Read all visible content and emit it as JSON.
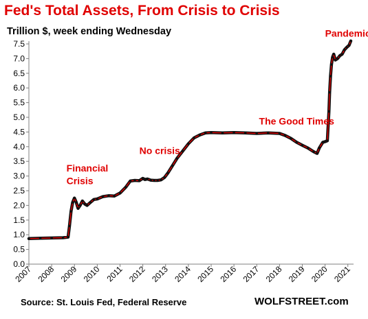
{
  "chart_data": {
    "type": "line",
    "title": "Fed's Total Assets, From Crisis to Crisis",
    "subtitle": "Trillion $, week ending Wednesday",
    "source": "Source: St. Louis Fed, Federal Reserve",
    "brand": "WOLFSTREET.com",
    "xlabel": "",
    "ylabel": "",
    "xlim": [
      2007.0,
      2021.25
    ],
    "ylim": [
      0.0,
      7.5
    ],
    "yticks": [
      "0.0",
      "0.5",
      "1.0",
      "1.5",
      "2.0",
      "2.5",
      "3.0",
      "3.5",
      "4.0",
      "4.5",
      "5.0",
      "5.5",
      "6.0",
      "6.5",
      "7.0",
      "7.5"
    ],
    "xticks": [
      "2007",
      "2008",
      "2009",
      "2010",
      "2011",
      "2012",
      "2013",
      "2014",
      "2015",
      "2016",
      "2017",
      "2018",
      "2019",
      "2020",
      "2021"
    ],
    "grid": false,
    "colors": {
      "line": "#e00000",
      "marker": "#111111",
      "annotation": "#e00000"
    },
    "annotations": [
      {
        "text": "Financial",
        "x": 2008.65,
        "y": 3.15
      },
      {
        "text": "Crisis",
        "x": 2008.65,
        "y": 2.72
      },
      {
        "text": "No crisis",
        "x": 2011.85,
        "y": 3.75
      },
      {
        "text": "The Good Times",
        "x": 2017.1,
        "y": 4.75
      },
      {
        "text": "Pandemic",
        "x": 2020.0,
        "y": 7.75
      }
    ],
    "series": [
      {
        "x": [
          2007.0,
          2007.5,
          2008.0,
          2008.5,
          2008.72,
          2008.78,
          2008.85,
          2008.92,
          2009.0,
          2009.08,
          2009.16,
          2009.25,
          2009.35,
          2009.45,
          2009.55,
          2009.7,
          2009.85,
          2010.0,
          2010.25,
          2010.5,
          2010.75,
          2011.0,
          2011.25,
          2011.45,
          2011.65,
          2011.85,
          2012.0,
          2012.1,
          2012.2,
          2012.35,
          2012.5,
          2012.65,
          2012.8,
          2012.95,
          2013.1,
          2013.3,
          2013.5,
          2013.75,
          2014.0,
          2014.25,
          2014.5,
          2014.75,
          2015.0,
          2015.5,
          2016.0,
          2016.5,
          2017.0,
          2017.5,
          2018.0,
          2018.25,
          2018.5,
          2018.75,
          2019.0,
          2019.25,
          2019.5,
          2019.65,
          2019.75,
          2019.9,
          2020.0,
          2020.1,
          2020.17,
          2020.2,
          2020.24,
          2020.28,
          2020.33,
          2020.38,
          2020.45,
          2020.55,
          2020.65,
          2020.75,
          2020.85,
          2020.95,
          2021.05,
          2021.13
        ],
        "values": [
          0.87,
          0.88,
          0.89,
          0.9,
          0.92,
          1.3,
          1.8,
          2.1,
          2.25,
          2.1,
          1.9,
          2.0,
          2.15,
          2.05,
          2.0,
          2.1,
          2.2,
          2.22,
          2.3,
          2.33,
          2.32,
          2.42,
          2.62,
          2.83,
          2.85,
          2.84,
          2.92,
          2.88,
          2.9,
          2.86,
          2.85,
          2.85,
          2.87,
          2.95,
          3.1,
          3.35,
          3.6,
          3.85,
          4.1,
          4.3,
          4.4,
          4.47,
          4.48,
          4.47,
          4.48,
          4.47,
          4.45,
          4.47,
          4.45,
          4.38,
          4.28,
          4.15,
          4.05,
          3.95,
          3.83,
          3.77,
          3.96,
          4.15,
          4.17,
          4.2,
          5.2,
          5.85,
          6.4,
          6.8,
          7.05,
          7.15,
          6.95,
          7.0,
          7.1,
          7.15,
          7.3,
          7.38,
          7.45,
          7.6
        ]
      }
    ]
  }
}
